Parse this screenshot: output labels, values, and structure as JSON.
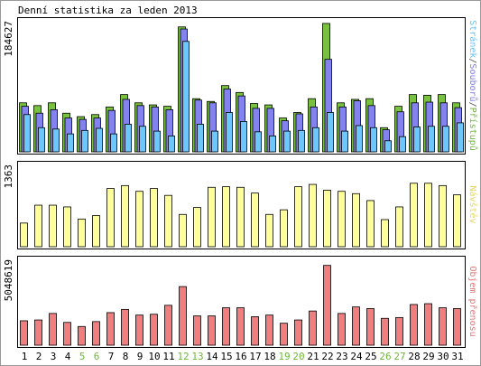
{
  "title": "Denní statistika za leden 2013",
  "chart_data": {
    "type": "bar",
    "categories": [
      "1",
      "2",
      "3",
      "4",
      "5",
      "6",
      "7",
      "8",
      "9",
      "10",
      "11",
      "12",
      "13",
      "14",
      "15",
      "16",
      "17",
      "18",
      "19",
      "20",
      "21",
      "22",
      "23",
      "24",
      "25",
      "26",
      "27",
      "28",
      "29",
      "30",
      "31"
    ],
    "weekend_days": [
      "5",
      "6",
      "12",
      "13",
      "19",
      "20",
      "26",
      "27"
    ],
    "panels": [
      {
        "id": "top",
        "ymax": 184627,
        "ymax_label": "184627",
        "side_label_parts": [
          {
            "text": "Stránek",
            "color": "#63c2ff"
          },
          {
            "text": "/",
            "color": "#4a4a4a"
          },
          {
            "text": "Souborů",
            "color": "#7b7bed"
          },
          {
            "text": "/",
            "color": "#4a4a4a"
          },
          {
            "text": "Přístupů",
            "color": "#6fb83a"
          }
        ],
        "series": [
          {
            "name": "Přístupů",
            "color": "#7ac142",
            "values": [
              71000,
              67000,
              71000,
              56000,
              51000,
              54000,
              65000,
              83000,
              71000,
              68000,
              66000,
              181000,
              77000,
              73000,
              96000,
              86000,
              70000,
              68000,
              49000,
              57000,
              77000,
              186000,
              71000,
              76000,
              77000,
              35000,
              66000,
              83000,
              82000,
              83000,
              71000
            ]
          },
          {
            "name": "Souborů",
            "color": "#8282f0",
            "values": [
              66000,
              56000,
              61000,
              49000,
              47000,
              49000,
              60000,
              76000,
              67000,
              65000,
              61000,
              178000,
              75000,
              71000,
              91000,
              81000,
              63000,
              63000,
              45000,
              55000,
              65000,
              134000,
              65000,
              74000,
              67000,
              32000,
              58000,
              71000,
              72000,
              71000,
              64000
            ]
          },
          {
            "name": "Stránek",
            "color": "#6ec6ff",
            "values": [
              54000,
              35000,
              33000,
              26000,
              31000,
              34000,
              26000,
              40000,
              37000,
              30000,
              23000,
              160000,
              40000,
              30000,
              57000,
              44000,
              29000,
              23000,
              30000,
              31000,
              35000,
              57000,
              30000,
              38000,
              35000,
              16000,
              22000,
              36000,
              37000,
              37000,
              42000
            ]
          }
        ]
      },
      {
        "id": "mid",
        "ymax": 1363,
        "ymax_label": "1363",
        "side_label_parts": [
          {
            "text": "Návštěv",
            "color": "#e6d75a"
          }
        ],
        "series": [
          {
            "name": "Návštěv",
            "color": "#ffff99",
            "values": [
              410,
              720,
              720,
              690,
              480,
              540,
              1010,
              1060,
              960,
              1010,
              890,
              560,
              680,
              1030,
              1040,
              1030,
              930,
              560,
              640,
              1040,
              1080,
              980,
              960,
              920,
              800,
              470,
              690,
              1100,
              1100,
              1060,
              900
            ]
          }
        ]
      },
      {
        "id": "bottom",
        "ymax": 5048619,
        "ymax_label": "5048619",
        "side_label_parts": [
          {
            "text": "Objem přenosu",
            "color": "#e57373"
          }
        ],
        "series": [
          {
            "name": "Objem přenosu",
            "color": "#ef7f7f",
            "values": [
              1500000,
              1550000,
              1950000,
              1400000,
              1150000,
              1450000,
              2000000,
              2200000,
              1850000,
              1900000,
              2450000,
              3600000,
              1800000,
              1800000,
              2300000,
              2300000,
              1750000,
              1850000,
              1350000,
              1550000,
              2100000,
              4900000,
              1950000,
              2350000,
              2250000,
              1650000,
              1700000,
              2500000,
              2550000,
              2300000,
              2250000
            ]
          }
        ]
      }
    ]
  }
}
